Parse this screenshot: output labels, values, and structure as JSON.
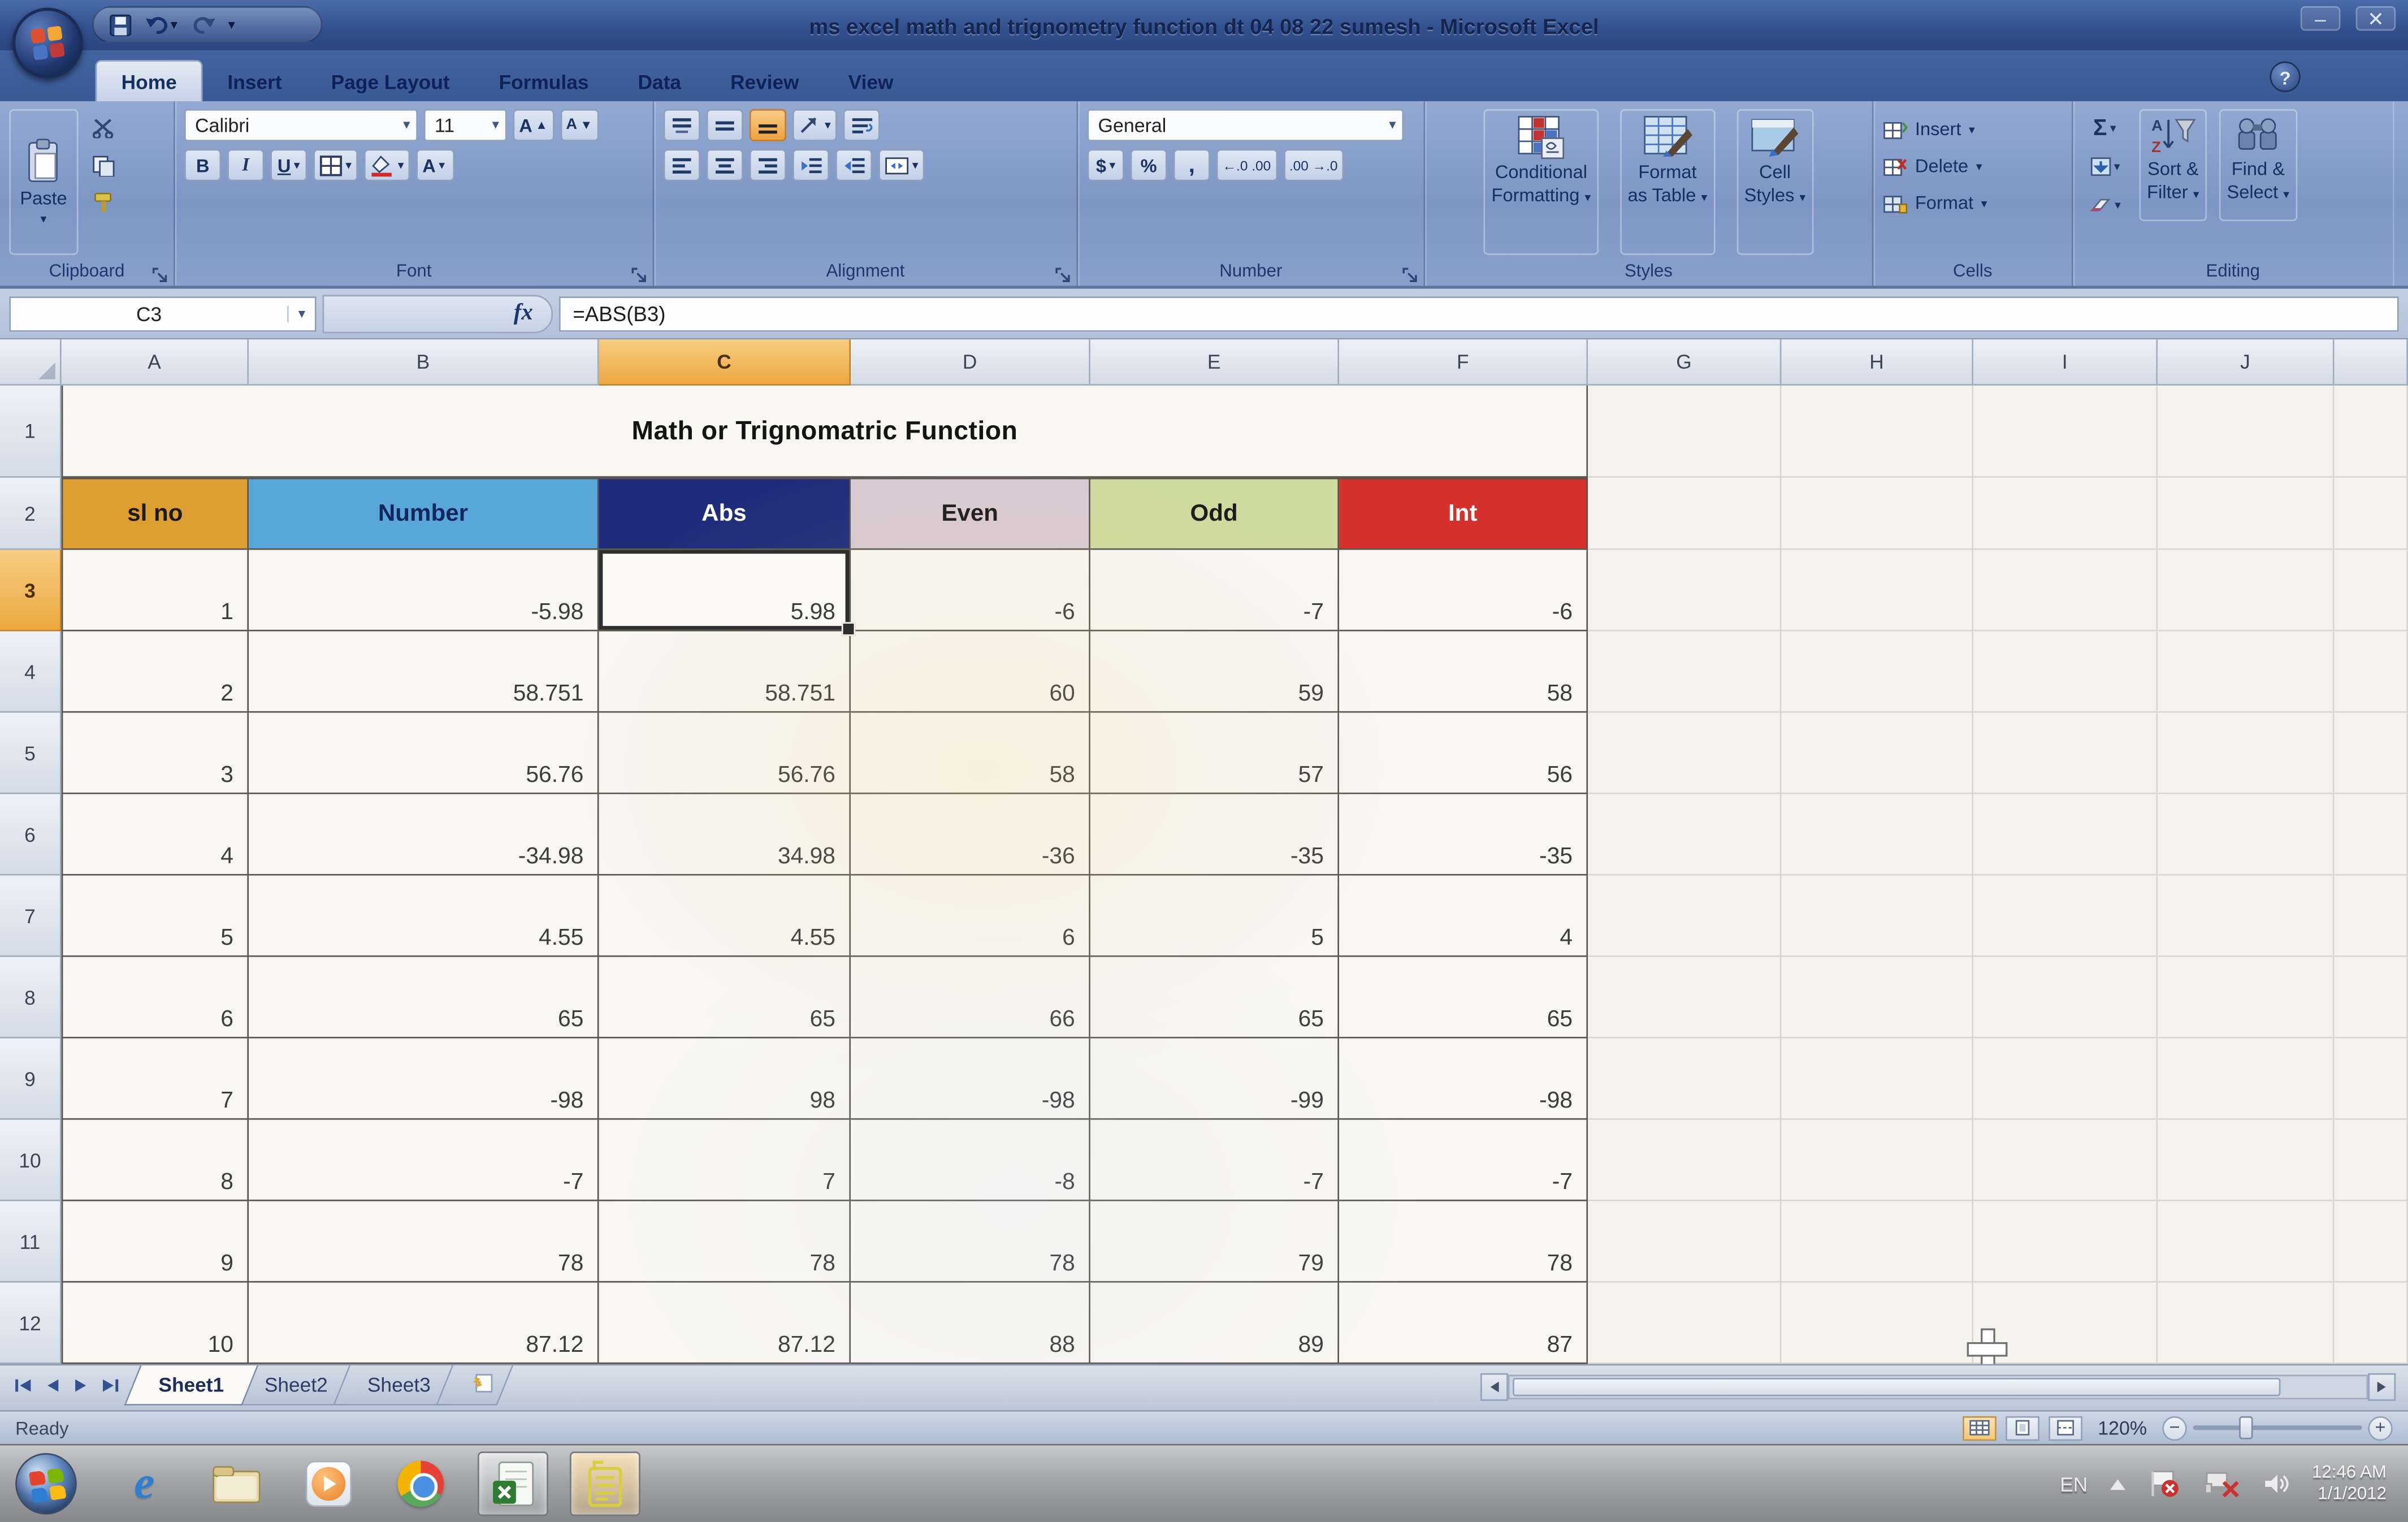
{
  "window": {
    "title": "ms excel math and trignometry function dt 04 08 22 sumesh - Microsoft Excel",
    "minimize": "–",
    "close": "✕"
  },
  "ribbon": {
    "tabs": [
      {
        "label": "Home",
        "active": true
      },
      {
        "label": "Insert"
      },
      {
        "label": "Page Layout"
      },
      {
        "label": "Formulas"
      },
      {
        "label": "Data"
      },
      {
        "label": "Review"
      },
      {
        "label": "View"
      }
    ],
    "help": "?",
    "clipboard": {
      "label": "Clipboard",
      "paste": "Paste"
    },
    "font": {
      "label": "Font",
      "name": "Calibri",
      "size": "11",
      "bold": "B",
      "italic": "I",
      "underline": "U",
      "grow": "A",
      "shrink": "A"
    },
    "alignment": {
      "label": "Alignment"
    },
    "number": {
      "label": "Number",
      "format": "General",
      "currency": "$",
      "percent": "%",
      "comma": ",",
      "increase_decimal": "←.0 .00",
      "decrease_decimal": ".00 →.0"
    },
    "styles": {
      "label": "Styles",
      "conditional": [
        "Conditional",
        "Formatting"
      ],
      "format_table": [
        "Format",
        "as Table"
      ],
      "cell_styles": [
        "Cell",
        "Styles"
      ]
    },
    "cells": {
      "label": "Cells",
      "insert": "Insert",
      "delete": "Delete",
      "format": "Format"
    },
    "editing": {
      "label": "Editing",
      "autosum": "Σ",
      "sort": [
        "Sort &",
        "Filter"
      ],
      "find": [
        "Find &",
        "Select"
      ]
    }
  },
  "formula_bar": {
    "name_box": "C3",
    "fx": "fx",
    "formula": "=ABS(B3)"
  },
  "sheet": {
    "columns": [
      "A",
      "B",
      "C",
      "D",
      "E",
      "F",
      "G",
      "H",
      "I",
      "J"
    ],
    "selected_cell": "C3",
    "selected_column": "C",
    "selected_row": 3,
    "row_numbers": [
      1,
      2,
      3,
      4,
      5,
      6,
      7,
      8,
      9,
      10,
      11,
      12
    ],
    "title_row_text": "Math or Trignomatric Function"
  },
  "table": {
    "headers": [
      {
        "label": "sl no",
        "bg": "#DD9E32",
        "fg": "#1b1b1b"
      },
      {
        "label": "Number",
        "bg": "#58A6DA",
        "fg": "#12275e"
      },
      {
        "label": "Abs",
        "bg": "#1F2C7B",
        "fg": "#ffffff"
      },
      {
        "label": "Even",
        "bg": "#D9C9D3",
        "fg": "#1b1b1b"
      },
      {
        "label": "Odd",
        "bg": "#CFDA9E",
        "fg": "#1b1b1b"
      },
      {
        "label": "Int",
        "bg": "#D6302C",
        "fg": "#ffffff"
      }
    ],
    "rows": [
      [
        "1",
        "-5.98",
        "5.98",
        "-6",
        "-7",
        "-6"
      ],
      [
        "2",
        "58.751",
        "58.751",
        "60",
        "59",
        "58"
      ],
      [
        "3",
        "56.76",
        "56.76",
        "58",
        "57",
        "56"
      ],
      [
        "4",
        "-34.98",
        "34.98",
        "-36",
        "-35",
        "-35"
      ],
      [
        "5",
        "4.55",
        "4.55",
        "6",
        "5",
        "4"
      ],
      [
        "6",
        "65",
        "65",
        "66",
        "65",
        "65"
      ],
      [
        "7",
        "-98",
        "98",
        "-98",
        "-99",
        "-98"
      ],
      [
        "8",
        "-7",
        "7",
        "-8",
        "-7",
        "-7"
      ],
      [
        "9",
        "78",
        "78",
        "78",
        "79",
        "78"
      ],
      [
        "10",
        "87.12",
        "87.12",
        "88",
        "89",
        "87"
      ]
    ]
  },
  "sheet_tabs": {
    "tabs": [
      {
        "label": "Sheet1",
        "active": true
      },
      {
        "label": "Sheet2",
        "active": false
      },
      {
        "label": "Sheet3",
        "active": false
      }
    ]
  },
  "status_bar": {
    "mode": "Ready",
    "zoom": "120%"
  },
  "taskbar": {
    "tray": {
      "lang": "EN",
      "time": "12:46 AM",
      "date": "1/1/2012"
    }
  }
}
